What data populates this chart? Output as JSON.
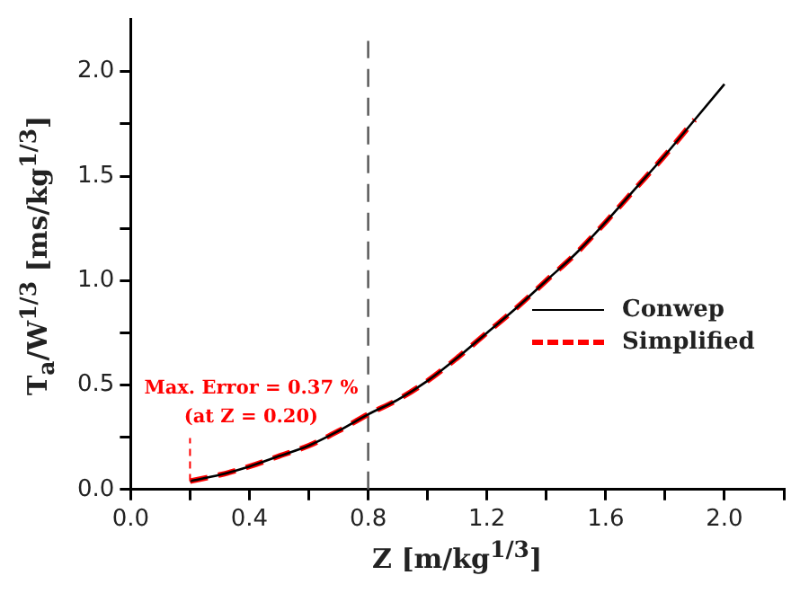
{
  "chart_data": {
    "type": "line",
    "xlabel": "Z [m/kg$^{1/3}$]",
    "ylabel": "T$_{a}$/W$^{1/3}$ [ms/kg$^{1/3}$]",
    "x": [
      0.2,
      0.3,
      0.4,
      0.5,
      0.6,
      0.7,
      0.8,
      0.9,
      1.0,
      1.1,
      1.2,
      1.3,
      1.4,
      1.5,
      1.6,
      1.7,
      1.8,
      1.9,
      2.0
    ],
    "series": [
      {
        "name": "Conwep",
        "color": "#000000",
        "line_style": "solid",
        "values": [
          0.04,
          0.07,
          0.11,
          0.16,
          0.21,
          0.28,
          0.36,
          0.43,
          0.52,
          0.63,
          0.75,
          0.87,
          1.0,
          1.13,
          1.28,
          1.44,
          1.6,
          1.77,
          1.94
        ]
      },
      {
        "name": "Simplified",
        "color": "#ff0000",
        "line_style": "dashed",
        "values": [
          0.04,
          0.07,
          0.11,
          0.16,
          0.21,
          0.28,
          0.36,
          0.43,
          0.52,
          0.63,
          0.75,
          0.87,
          1.0,
          1.13,
          1.28,
          1.44,
          1.6,
          1.77,
          null
        ]
      }
    ],
    "xlim": [
      0,
      2.2
    ],
    "xticks": [
      {
        "value": 0,
        "label": "0.0"
      },
      {
        "value": 0.2,
        "label": null
      },
      0.4,
      {
        "value": 0.6,
        "label": null
      },
      0.8,
      {
        "value": 1.0,
        "label": null
      },
      1.2,
      {
        "value": 1.4,
        "label": null
      },
      1.6,
      {
        "value": 1.8,
        "label": null
      },
      {
        "value": 2,
        "label": "2.0"
      },
      {
        "value": 2.2,
        "label": null
      }
    ],
    "ylim": [
      0,
      2.25
    ],
    "yticks": [
      {
        "value": 0,
        "label": "0.0"
      },
      {
        "value": 0.25,
        "label": null
      },
      0.5,
      {
        "value": 0.75,
        "label": null
      },
      {
        "value": 1,
        "label": "1.0"
      },
      {
        "value": 1.25,
        "label": null
      },
      1.5,
      {
        "value": 1.75,
        "label": null
      },
      {
        "value": 2,
        "label": "2.0"
      }
    ],
    "ref_lines": [
      {
        "axis": "x",
        "value": 0.8,
        "color": "#555555",
        "line_style": "dashed"
      }
    ],
    "annotations": [
      {
        "text": "Max. Error = 0.37 %\n(at Z = 0.20)",
        "x": 0.2,
        "y": 0.04
      }
    ],
    "grid": false,
    "legend": "right",
    "marker": "none"
  }
}
